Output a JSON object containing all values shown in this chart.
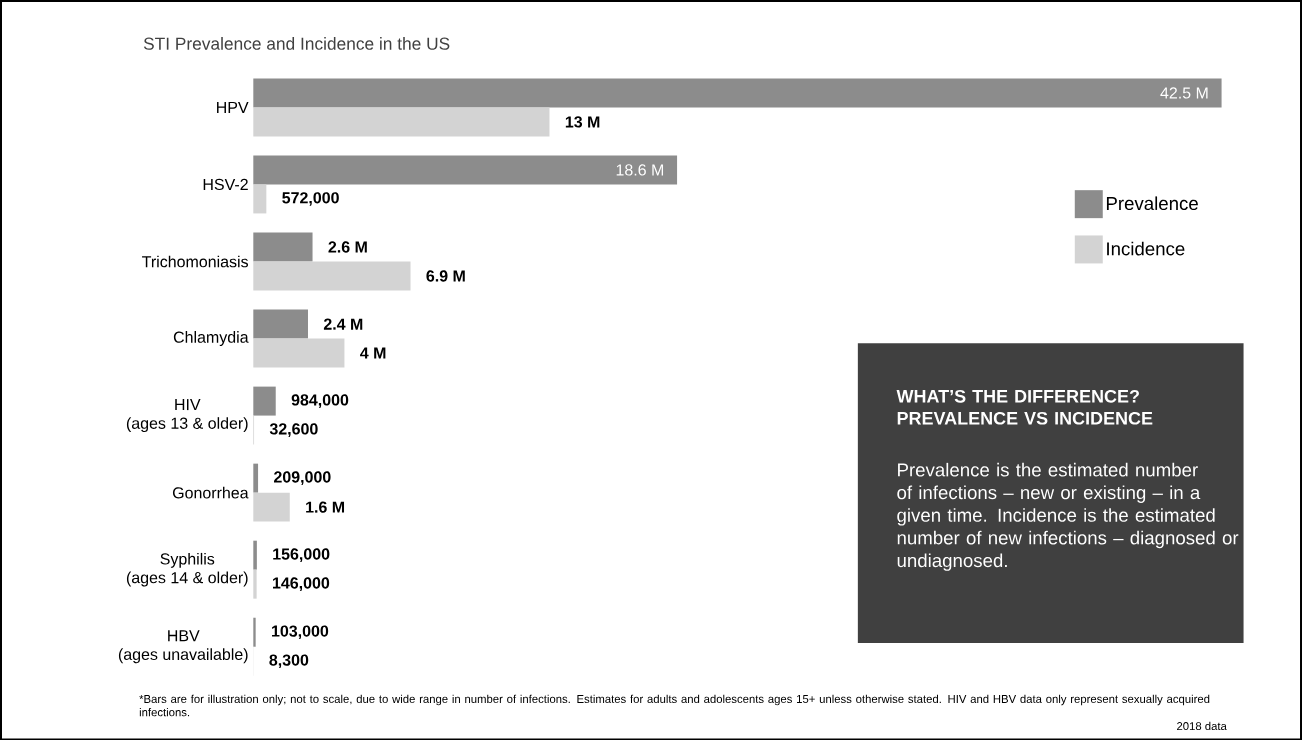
{
  "chart_data": {
    "type": "bar",
    "orientation": "horizontal",
    "title": "STI Prevalence and Incidence in the US",
    "categories": [
      "HPV",
      "HSV-2",
      "Trichomoniasis",
      "Chlamydia",
      "HIV (ages 13 & older)",
      "Gonorrhea",
      "Syphilis (ages 14 & older)",
      "HBV (ages unavailable)"
    ],
    "series": [
      {
        "name": "Prevalence",
        "color": "#8c8c8c",
        "values": [
          42500000,
          18600000,
          2600000,
          2400000,
          984000,
          209000,
          156000,
          103000
        ],
        "value_labels": [
          "42.5 M",
          "18.6 M",
          "2.6 M",
          "2.4 M",
          "984,000",
          "209,000",
          "156,000",
          "103,000"
        ]
      },
      {
        "name": "Incidence",
        "color": "#d3d3d3",
        "values": [
          13000000,
          572000,
          6900000,
          4000000,
          32600,
          1600000,
          146000,
          8300
        ],
        "value_labels": [
          "13 M",
          "572,000",
          "6.9 M",
          "4 M",
          "32,600",
          "1.6 M",
          "146,000",
          "8,300"
        ]
      }
    ],
    "legend": "right",
    "annotations": [
      "WHAT’S THE DIFFERENCE? PREVALENCE VS INCIDENCE",
      "Prevalence is the estimated number of infections – new or existing – in a given time. Incidence is the estimated number of new infections – diagnosed or undiagnosed.",
      "*Bars are for illustration only; not to scale, due to wide range in number of infections. Estimates for adults and adolescents ages 15+ unless otherwise stated. HIV and HBV data only represent sexually acquired infections.",
      "2018 data"
    ]
  }
}
